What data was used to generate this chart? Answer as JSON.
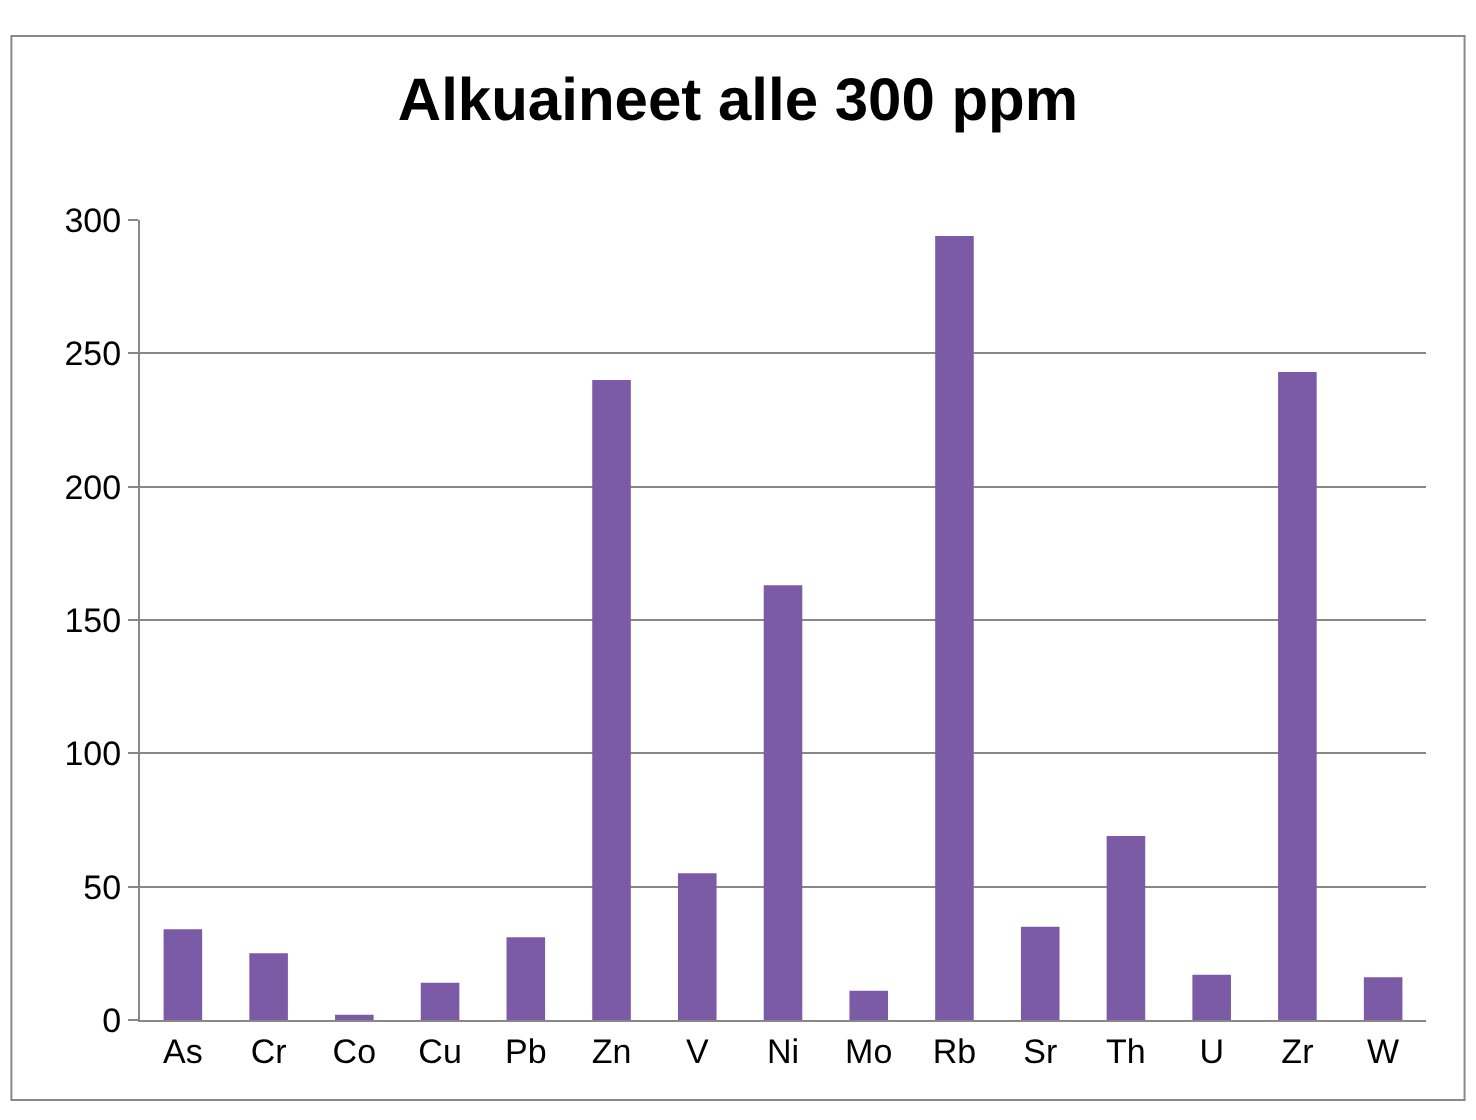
{
  "chart_data": {
    "type": "bar",
    "title": "Alkuaineet alle 300 ppm",
    "categories": [
      "As",
      "Cr",
      "Co",
      "Cu",
      "Pb",
      "Zn",
      "V",
      "Ni",
      "Mo",
      "Rb",
      "Sr",
      "Th",
      "U",
      "Zr",
      "W"
    ],
    "values": [
      34,
      25,
      2,
      14,
      31,
      240,
      55,
      163,
      11,
      294,
      35,
      69,
      17,
      243,
      16
    ],
    "color": "#7b5aa6",
    "ylim": [
      0,
      300
    ],
    "yticks": [
      0,
      50,
      100,
      150,
      200,
      250,
      300
    ],
    "grid": "y",
    "legend": false
  }
}
